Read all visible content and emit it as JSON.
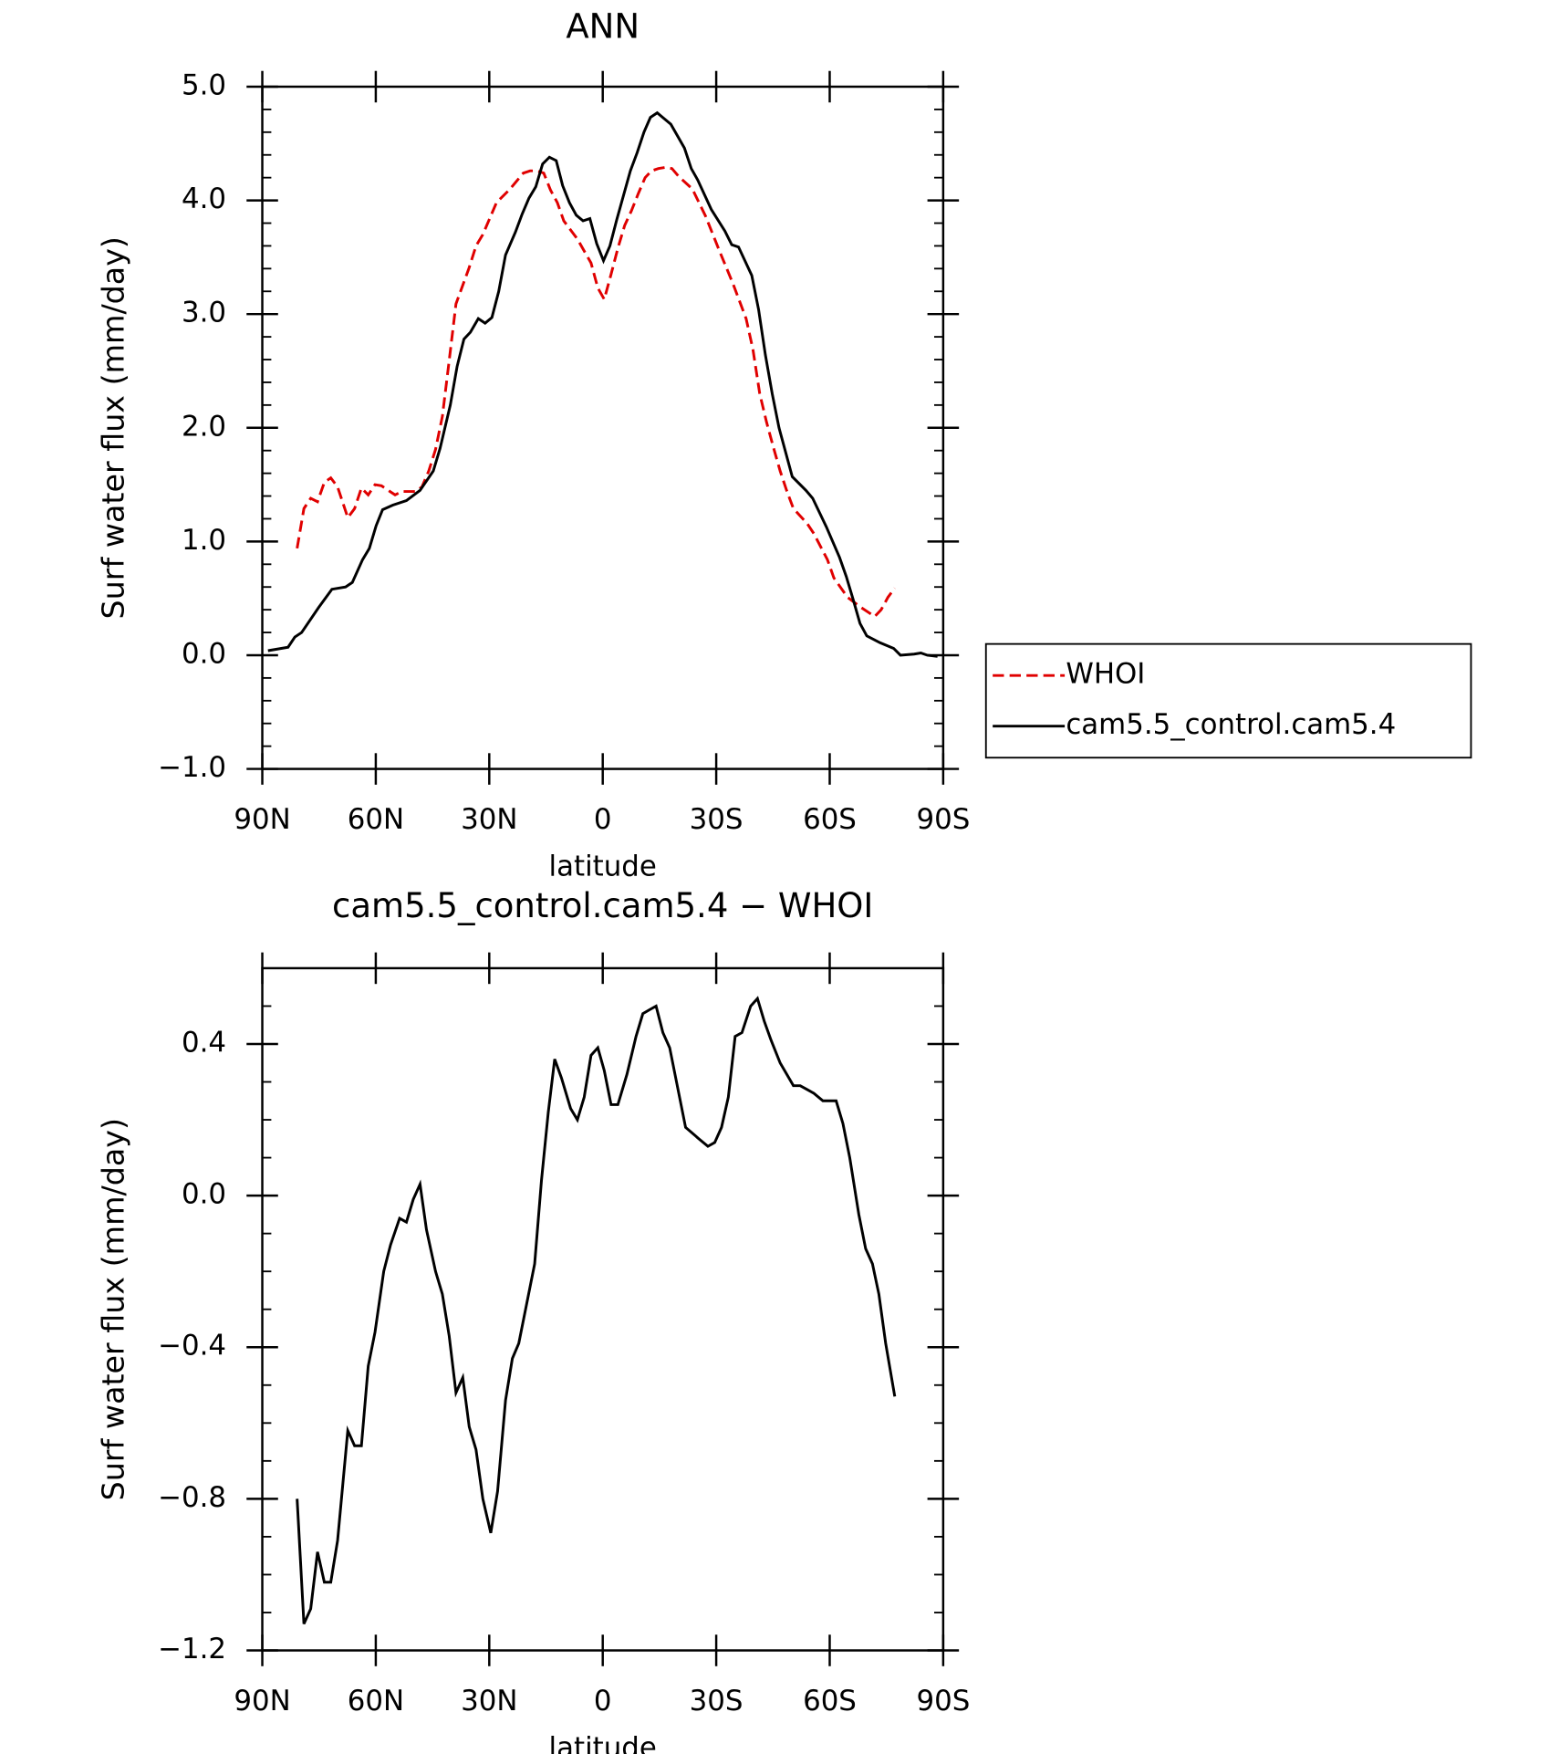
{
  "chart_data": [
    {
      "type": "line",
      "title": "ANN",
      "x_label": "latitude",
      "y_label": "Surf water flux (mm/day)",
      "xlim": [
        90,
        -90
      ],
      "xticks": [
        {
          "value": 90,
          "label": "90N"
        },
        {
          "value": 60,
          "label": "60N"
        },
        {
          "value": 30,
          "label": "30N"
        },
        0,
        {
          "value": -30,
          "label": "30S"
        },
        {
          "value": -60,
          "label": "60S"
        },
        {
          "value": -90,
          "label": "90S"
        }
      ],
      "ylim": [
        -1,
        5
      ],
      "yticks": [
        {
          "value": -1,
          "label": "−1.0"
        },
        {
          "value": 0,
          "label": "0.0"
        },
        {
          "value": 1,
          "label": "1.0"
        },
        {
          "value": 2,
          "label": "2.0"
        },
        {
          "value": 3,
          "label": "3.0"
        },
        {
          "value": 4,
          "label": "4.0"
        },
        {
          "value": 5,
          "label": "5.0"
        }
      ],
      "yminor": [
        -0.8,
        -0.6,
        -0.4,
        -0.2,
        0.2,
        0.4,
        0.6,
        0.8,
        1.2,
        1.4,
        1.6,
        1.8,
        2.2,
        2.4,
        2.6,
        2.8,
        3.2,
        3.4,
        3.6,
        3.8,
        4.2,
        4.4,
        4.6,
        4.8
      ],
      "legend": "outside-right",
      "series": [
        {
          "name": "WHOI",
          "color": "#e00000",
          "style": "dashed",
          "x": [
            80.8,
            79.0,
            77.2,
            75.4,
            73.6,
            71.9,
            70.1,
            67.4,
            65.6,
            63.8,
            62.0,
            60.2,
            58.5,
            54.9,
            53.1,
            51.3,
            49.5,
            47.8,
            46.0,
            44.2,
            42.4,
            40.6,
            38.8,
            35.3,
            33.5,
            31.7,
            28.1,
            24.5,
            21.0,
            19.2,
            17.4,
            15.6,
            13.8,
            12.0,
            10.3,
            6.7,
            3.1,
            1.3,
            -0.4,
            -2.2,
            -4.0,
            -5.8,
            -7.6,
            -9.4,
            -11.2,
            -12.9,
            -14.7,
            -16.5,
            -18.3,
            -20.1,
            -23.7,
            -27.2,
            -30.8,
            -34.4,
            -37.9,
            -39.7,
            -41.5,
            -43.3,
            -45.1,
            -46.9,
            -48.6,
            -50.4,
            -54.0,
            -55.8,
            -59.4,
            -61.1,
            -64.7,
            -68.3,
            -71.9,
            -73.6,
            -75.4,
            -77.2
          ],
          "values": [
            0.94,
            1.29,
            1.38,
            1.35,
            1.52,
            1.56,
            1.48,
            1.21,
            1.29,
            1.47,
            1.41,
            1.5,
            1.49,
            1.41,
            1.44,
            1.44,
            1.44,
            1.48,
            1.62,
            1.81,
            2.1,
            2.59,
            3.09,
            3.41,
            3.6,
            3.7,
            3.98,
            4.1,
            4.24,
            4.26,
            4.26,
            4.24,
            4.09,
            3.98,
            3.82,
            3.66,
            3.45,
            3.23,
            3.13,
            3.35,
            3.58,
            3.78,
            3.91,
            4.06,
            4.2,
            4.26,
            4.28,
            4.29,
            4.28,
            4.21,
            4.1,
            3.86,
            3.56,
            3.27,
            2.96,
            2.69,
            2.3,
            2.05,
            1.83,
            1.62,
            1.45,
            1.29,
            1.16,
            1.07,
            0.84,
            0.68,
            0.51,
            0.42,
            0.34,
            0.4,
            0.51,
            0.59
          ]
        },
        {
          "name": "cam5.5_control.cam5.4",
          "color": "#000000",
          "style": "solid",
          "x": [
            88.5,
            83.2,
            81.4,
            79.6,
            75.1,
            71.6,
            68.0,
            66.2,
            63.5,
            61.7,
            59.9,
            58.2,
            55.5,
            51.9,
            48.3,
            44.8,
            43.0,
            40.3,
            38.5,
            36.7,
            35.0,
            32.9,
            31.1,
            29.3,
            27.5,
            25.7,
            23.1,
            21.3,
            19.5,
            17.7,
            15.9,
            14.1,
            12.3,
            10.6,
            8.8,
            7.0,
            5.2,
            3.4,
            1.6,
            -0.2,
            -1.9,
            -3.7,
            -7.3,
            -9.1,
            -10.9,
            -12.6,
            -14.4,
            -16.2,
            -18.0,
            -21.6,
            -23.4,
            -25.1,
            -28.7,
            -32.3,
            -34.1,
            -35.9,
            -39.4,
            -41.2,
            -43.0,
            -44.8,
            -46.6,
            -50.1,
            -53.7,
            -55.5,
            -59.1,
            -62.6,
            -64.4,
            -66.2,
            -68.0,
            -69.8,
            -73.3,
            -76.9,
            -78.7,
            -82.3,
            -84.1,
            -85.8,
            -88.5
          ],
          "values": [
            0.04,
            0.07,
            0.16,
            0.2,
            0.42,
            0.58,
            0.6,
            0.64,
            0.84,
            0.94,
            1.14,
            1.28,
            1.32,
            1.36,
            1.45,
            1.62,
            1.82,
            2.2,
            2.54,
            2.78,
            2.84,
            2.96,
            2.92,
            2.97,
            3.2,
            3.52,
            3.72,
            3.88,
            4.02,
            4.12,
            4.32,
            4.38,
            4.35,
            4.13,
            3.98,
            3.87,
            3.82,
            3.84,
            3.62,
            3.47,
            3.6,
            3.83,
            4.26,
            4.42,
            4.6,
            4.73,
            4.77,
            4.72,
            4.67,
            4.46,
            4.28,
            4.18,
            3.92,
            3.73,
            3.61,
            3.59,
            3.34,
            3.04,
            2.64,
            2.3,
            2.0,
            1.57,
            1.45,
            1.38,
            1.13,
            0.86,
            0.69,
            0.49,
            0.28,
            0.17,
            0.11,
            0.06,
            0.0,
            0.01,
            0.02,
            0.0,
            -0.01
          ]
        }
      ]
    },
    {
      "type": "line",
      "title": "cam5.5_control.cam5.4 − WHOI",
      "x_label": "latitude",
      "y_label": "Surf water flux (mm/day)",
      "xlim": [
        90,
        -90
      ],
      "xticks": [
        {
          "value": 90,
          "label": "90N"
        },
        {
          "value": 60,
          "label": "60N"
        },
        {
          "value": 30,
          "label": "30N"
        },
        0,
        {
          "value": -30,
          "label": "30S"
        },
        {
          "value": -60,
          "label": "60S"
        },
        {
          "value": -90,
          "label": "90S"
        }
      ],
      "ylim": [
        -1.2,
        0.6
      ],
      "yticks": [
        {
          "value": -1.2,
          "label": "−1.2"
        },
        {
          "value": -0.8,
          "label": "−0.8"
        },
        {
          "value": -0.4,
          "label": "−0.4"
        },
        {
          "value": 0,
          "label": "0.0"
        },
        0.4
      ],
      "yminor": [
        -1.1,
        -1.0,
        -0.9,
        -0.7,
        -0.6,
        -0.5,
        -0.3,
        -0.2,
        -0.1,
        0.1,
        0.2,
        0.3,
        0.5
      ],
      "series": [
        {
          "color": "#000000",
          "style": "solid",
          "x": [
            80.8,
            79.0,
            77.2,
            75.4,
            73.6,
            71.9,
            70.1,
            67.4,
            65.6,
            63.8,
            62.0,
            60.2,
            57.9,
            56.1,
            53.7,
            51.9,
            50.1,
            48.3,
            46.6,
            44.2,
            42.4,
            40.6,
            38.8,
            37.0,
            35.3,
            33.5,
            31.7,
            29.6,
            27.8,
            25.7,
            23.9,
            22.2,
            18.0,
            16.2,
            14.4,
            12.7,
            10.9,
            8.5,
            6.7,
            4.9,
            3.1,
            1.3,
            -0.4,
            -2.2,
            -4.0,
            -6.4,
            -8.8,
            -10.6,
            -12.3,
            -14.1,
            -15.9,
            -17.7,
            -20.1,
            -21.9,
            -25.4,
            -27.8,
            -29.6,
            -31.4,
            -33.2,
            -35.0,
            -36.8,
            -39.1,
            -40.9,
            -42.7,
            -44.5,
            -46.9,
            -50.4,
            -52.2,
            -54.0,
            -55.8,
            -58.2,
            -61.7,
            -63.5,
            -65.3,
            -67.7,
            -69.5,
            -71.3,
            -73.0,
            -74.8,
            -77.2
          ],
          "values": [
            -0.8,
            -1.13,
            -1.09,
            -0.94,
            -1.02,
            -1.02,
            -0.91,
            -0.62,
            -0.66,
            -0.66,
            -0.45,
            -0.36,
            -0.2,
            -0.13,
            -0.06,
            -0.07,
            -0.01,
            0.03,
            -0.09,
            -0.2,
            -0.26,
            -0.37,
            -0.52,
            -0.48,
            -0.61,
            -0.67,
            -0.8,
            -0.89,
            -0.78,
            -0.54,
            -0.43,
            -0.39,
            -0.18,
            0.04,
            0.22,
            0.36,
            0.31,
            0.23,
            0.2,
            0.26,
            0.37,
            0.39,
            0.33,
            0.24,
            0.24,
            0.32,
            0.42,
            0.48,
            0.49,
            0.5,
            0.43,
            0.39,
            0.27,
            0.18,
            0.15,
            0.13,
            0.14,
            0.18,
            0.26,
            0.42,
            0.43,
            0.5,
            0.52,
            0.46,
            0.41,
            0.35,
            0.29,
            0.29,
            0.28,
            0.27,
            0.25,
            0.25,
            0.19,
            0.1,
            -0.05,
            -0.14,
            -0.18,
            -0.26,
            -0.39,
            -0.53
          ]
        }
      ]
    }
  ]
}
